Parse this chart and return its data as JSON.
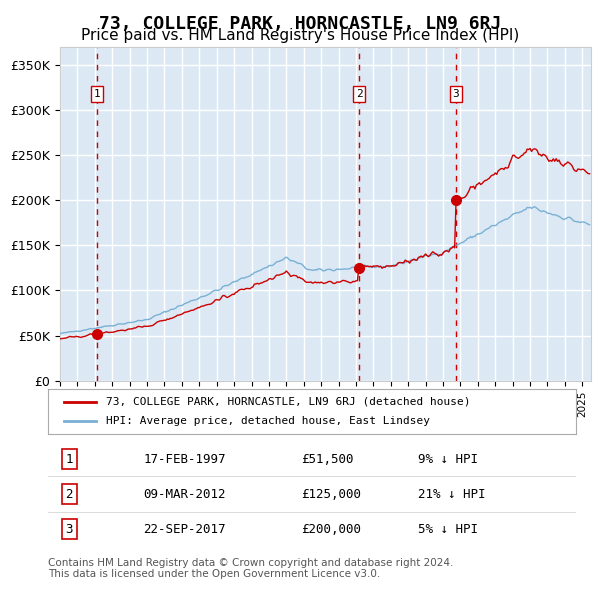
{
  "title": "73, COLLEGE PARK, HORNCASTLE, LN9 6RJ",
  "subtitle": "Price paid vs. HM Land Registry's House Price Index (HPI)",
  "title_fontsize": 13,
  "subtitle_fontsize": 11,
  "bg_color": "#dce9f5",
  "plot_bg_color": "#dce9f5",
  "fig_bg_color": "#ffffff",
  "hpi_color": "#7ab0d4",
  "price_color": "#cc0000",
  "sale_marker_color": "#cc0000",
  "dashed_line_color": "#cc0000",
  "grid_color": "#ffffff",
  "ylim": [
    0,
    370000
  ],
  "yticks": [
    0,
    50000,
    100000,
    150000,
    200000,
    250000,
    300000,
    350000
  ],
  "ytick_labels": [
    "£0",
    "£50K",
    "£100K",
    "£150K",
    "£200K",
    "£250K",
    "£300K",
    "£350K"
  ],
  "xlim_start": 1995.0,
  "xlim_end": 2025.5,
  "sale1_x": 1997.12,
  "sale1_y": 51500,
  "sale2_x": 2012.19,
  "sale2_y": 125000,
  "sale3_x": 2017.73,
  "sale3_y": 200000,
  "legend_label_red": "73, COLLEGE PARK, HORNCASTLE, LN9 6RJ (detached house)",
  "legend_label_blue": "HPI: Average price, detached house, East Lindsey",
  "table_entries": [
    {
      "num": "1",
      "date": "17-FEB-1997",
      "price": "£51,500",
      "hpi": "9% ↓ HPI"
    },
    {
      "num": "2",
      "date": "09-MAR-2012",
      "price": "£125,000",
      "hpi": "21% ↓ HPI"
    },
    {
      "num": "3",
      "date": "22-SEP-2017",
      "price": "£200,000",
      "hpi": "5% ↓ HPI"
    }
  ],
  "footnote": "Contains HM Land Registry data © Crown copyright and database right 2024.\nThis data is licensed under the Open Government Licence v3.0.",
  "footnote_fontsize": 7.5
}
